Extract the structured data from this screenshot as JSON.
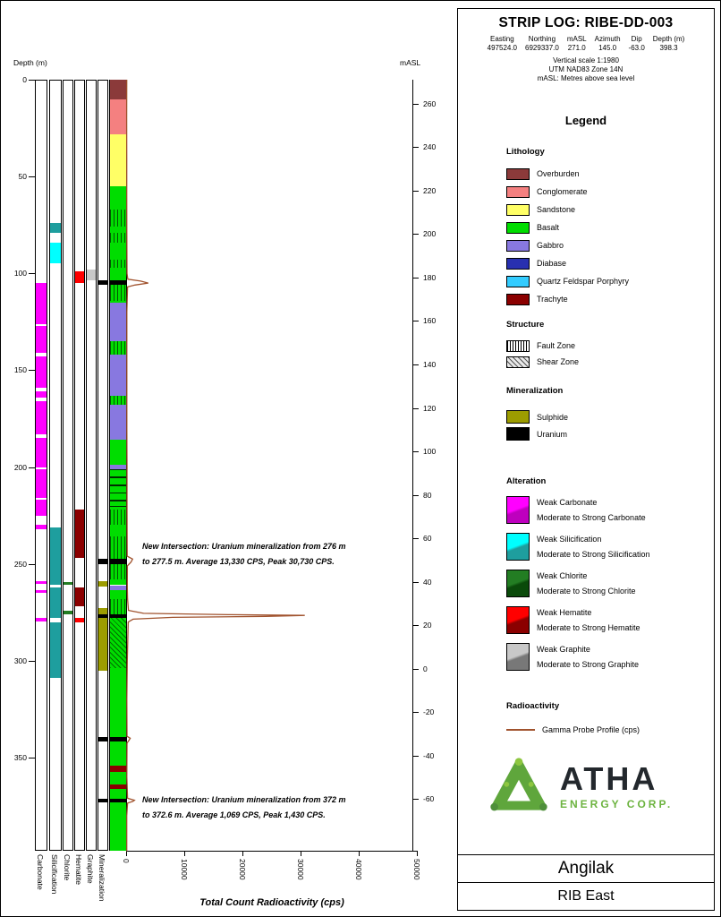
{
  "header": {
    "title": "STRIP LOG: RIBE-DD-003",
    "info": [
      {
        "label": "Easting",
        "value": "497524.0"
      },
      {
        "label": "Northing",
        "value": "6929337.0"
      },
      {
        "label": "mASL",
        "value": "271.0"
      },
      {
        "label": "Azimuth",
        "value": "145.0"
      },
      {
        "label": "Dip",
        "value": "-63.0"
      },
      {
        "label": "Depth (m)",
        "value": "398.3"
      }
    ],
    "notes": [
      "Vertical scale 1:1980",
      "UTM NAD83 Zone 14N",
      "mASL: Metres above sea level"
    ]
  },
  "legend": {
    "title": "Legend",
    "lithology": {
      "title": "Lithology",
      "items": [
        {
          "label": "Overburden",
          "color": "#8B3A3A"
        },
        {
          "label": "Conglomerate",
          "color": "#F48080"
        },
        {
          "label": "Sandstone",
          "color": "#FFFF66"
        },
        {
          "label": "Basalt",
          "color": "#00DD00"
        },
        {
          "label": "Gabbro",
          "color": "#8878E0"
        },
        {
          "label": "Diabase",
          "color": "#2830B0"
        },
        {
          "label": "Quartz Feldspar Porphyry",
          "color": "#33CCFF"
        },
        {
          "label": "Trachyte",
          "color": "#8B0000"
        }
      ]
    },
    "structure": {
      "title": "Structure",
      "items": [
        {
          "label": "Fault Zone",
          "pattern": "vertical-lines"
        },
        {
          "label": "Shear Zone",
          "pattern": "diagonal-lines"
        }
      ]
    },
    "mineralization": {
      "title": "Mineralization",
      "items": [
        {
          "label": "Sulphide",
          "color": "#9C9C00"
        },
        {
          "label": "Uranium",
          "color": "#000000"
        }
      ]
    },
    "alteration": {
      "title": "Alteration",
      "items": [
        {
          "name": "Carbonate",
          "weak_label": "Weak Carbonate",
          "strong_label": "Moderate to Strong Carbonate",
          "weak_color": "#FF00FF",
          "strong_color": "#BE00BE"
        },
        {
          "name": "Silicification",
          "weak_label": "Weak Silicification",
          "strong_label": "Moderate to Strong Silicification",
          "weak_color": "#00FFFF",
          "strong_color": "#1E9E9E"
        },
        {
          "name": "Chlorite",
          "weak_label": "Weak Chlorite",
          "strong_label": "Moderate to Strong Chlorite",
          "weak_color": "#237D23",
          "strong_color": "#0A4A0A"
        },
        {
          "name": "Hematite",
          "weak_label": "Weak Hematite",
          "strong_label": "Moderate to Strong Hematite",
          "weak_color": "#FF0000",
          "strong_color": "#8B0000"
        },
        {
          "name": "Graphite",
          "weak_label": "Weak Graphite",
          "strong_label": "Moderate to Strong Graphite",
          "weak_color": "#C8C8C8",
          "strong_color": "#787878"
        }
      ]
    },
    "radioactivity": {
      "title": "Radioactivity",
      "items": [
        {
          "label": "Gamma Probe Profile (cps)",
          "color": "#A0522D"
        }
      ]
    }
  },
  "branding": {
    "name": "ATHA",
    "subtitle": "ENERGY CORP.",
    "green": "#6CB33F",
    "dark": "#23282D"
  },
  "footer": {
    "project": "Angilak",
    "area": "RIB East"
  },
  "annotations": [
    {
      "line1": "New Intersection: Uranium mineralization from 276 m",
      "line2": "to 277.5 m. Average 13,330 CPS, Peak 30,730 CPS."
    },
    {
      "line1": "New Intersection: Uranium mineralization from 372 m",
      "line2": "to 372.6 m. Average 1,069 CPS, Peak 1,430 CPS."
    }
  ],
  "chart_data": {
    "type": "strip-log",
    "title": "STRIP LOG: RIBE-DD-003",
    "collar_masl": 271.0,
    "dip_deg": -63.0,
    "hole_depth_m": 398.3,
    "depth_axis": {
      "label": "Depth (m)",
      "ticks": [
        0,
        50,
        100,
        150,
        200,
        250,
        300,
        350
      ]
    },
    "masl_axis": {
      "label": "mASL",
      "ticks": [
        260,
        240,
        220,
        200,
        180,
        160,
        140,
        120,
        100,
        80,
        60,
        40,
        20,
        0,
        -20,
        -40,
        -60
      ]
    },
    "cps_axis": {
      "label": "Total Count Radioactivity (cps)",
      "ticks": [
        0,
        10000,
        20000,
        30000,
        40000,
        50000
      ],
      "max": 50000
    },
    "column_labels": [
      "Carbonate",
      "Silicification",
      "Chlorite",
      "Hematite",
      "Graphite",
      "Mineralization"
    ],
    "lithology_intervals": [
      {
        "from": 0,
        "to": 10,
        "unit": "Overburden"
      },
      {
        "from": 10,
        "to": 28,
        "unit": "Conglomerate"
      },
      {
        "from": 28,
        "to": 55,
        "unit": "Sandstone"
      },
      {
        "from": 55,
        "to": 115,
        "unit": "Basalt"
      },
      {
        "from": 115,
        "to": 135,
        "unit": "Gabbro"
      },
      {
        "from": 135,
        "to": 142,
        "unit": "Basalt"
      },
      {
        "from": 142,
        "to": 163,
        "unit": "Gabbro"
      },
      {
        "from": 163,
        "to": 168,
        "unit": "Basalt"
      },
      {
        "from": 168,
        "to": 186,
        "unit": "Gabbro"
      },
      {
        "from": 186,
        "to": 199,
        "unit": "Basalt"
      },
      {
        "from": 199,
        "to": 201,
        "unit": "Gabbro"
      },
      {
        "from": 201,
        "to": 261,
        "unit": "Basalt"
      },
      {
        "from": 261,
        "to": 263.5,
        "unit": "Gabbro"
      },
      {
        "from": 263.5,
        "to": 354,
        "unit": "Basalt"
      },
      {
        "from": 354,
        "to": 357.5,
        "unit": "Trachyte"
      },
      {
        "from": 357.5,
        "to": 364,
        "unit": "Basalt"
      },
      {
        "from": 364,
        "to": 366,
        "unit": "Trachyte"
      },
      {
        "from": 366,
        "to": 398.3,
        "unit": "Basalt"
      }
    ],
    "structure_intervals": [
      {
        "from": 67,
        "to": 76,
        "type": "Fault Zone"
      },
      {
        "from": 79,
        "to": 84,
        "type": "Fault Zone"
      },
      {
        "from": 93,
        "to": 97,
        "type": "Fault Zone"
      },
      {
        "from": 106,
        "to": 114,
        "type": "Fault Zone"
      },
      {
        "from": 135,
        "to": 142,
        "type": "Fault Zone"
      },
      {
        "from": 163,
        "to": 168,
        "type": "Fault Zone"
      },
      {
        "from": 222,
        "to": 230,
        "type": "Fault Zone"
      },
      {
        "from": 236,
        "to": 248,
        "type": "Fault Zone"
      },
      {
        "from": 250,
        "to": 258,
        "type": "Fault Zone"
      },
      {
        "from": 268,
        "to": 276,
        "type": "Fault Zone"
      },
      {
        "from": 276,
        "to": 304,
        "type": "Shear Zone"
      }
    ],
    "vein_marker_depths": [
      201,
      205,
      209,
      213,
      217,
      220
    ],
    "uranium_bands": [
      {
        "from": 103.5,
        "to": 106
      },
      {
        "from": 247.5,
        "to": 250
      },
      {
        "from": 275.8,
        "to": 277.8
      },
      {
        "from": 339.5,
        "to": 341.5
      },
      {
        "from": 371.3,
        "to": 373.2
      }
    ],
    "alteration_intervals": {
      "Carbonate": [
        {
          "from": 105,
          "to": 126,
          "grade": "weak"
        },
        {
          "from": 127,
          "to": 141,
          "grade": "weak"
        },
        {
          "from": 143,
          "to": 159,
          "grade": "weak"
        },
        {
          "from": 161,
          "to": 164,
          "grade": "weak"
        },
        {
          "from": 166,
          "to": 183,
          "grade": "weak"
        },
        {
          "from": 185,
          "to": 200,
          "grade": "weak"
        },
        {
          "from": 201,
          "to": 216,
          "grade": "weak"
        },
        {
          "from": 217,
          "to": 225,
          "grade": "weak"
        },
        {
          "from": 230,
          "to": 232,
          "grade": "weak"
        },
        {
          "from": 259,
          "to": 260.5,
          "grade": "weak"
        },
        {
          "from": 263.5,
          "to": 265,
          "grade": "weak"
        },
        {
          "from": 278,
          "to": 279.5,
          "grade": "weak"
        }
      ],
      "Silicification": [
        {
          "from": 74,
          "to": 79,
          "grade": "strong"
        },
        {
          "from": 84,
          "to": 95,
          "grade": "weak"
        },
        {
          "from": 231,
          "to": 261,
          "grade": "strong"
        },
        {
          "from": 262,
          "to": 278,
          "grade": "strong"
        },
        {
          "from": 280,
          "to": 309,
          "grade": "strong"
        }
      ],
      "Chlorite": [
        {
          "from": 259.5,
          "to": 261,
          "grade": "weak"
        },
        {
          "from": 274,
          "to": 276,
          "grade": "weak"
        }
      ],
      "Hematite": [
        {
          "from": 99,
          "to": 105,
          "grade": "weak"
        },
        {
          "from": 222,
          "to": 247,
          "grade": "strong"
        },
        {
          "from": 262,
          "to": 272,
          "grade": "strong"
        },
        {
          "from": 278,
          "to": 280,
          "grade": "weak"
        }
      ],
      "Graphite": [
        {
          "from": 98,
          "to": 103.5,
          "grade": "weak"
        }
      ]
    },
    "mineralization_intervals": {
      "Sulphide": [
        {
          "from": 259,
          "to": 261.5
        },
        {
          "from": 273,
          "to": 305
        }
      ],
      "Uranium": [
        {
          "from": 103.5,
          "to": 106
        },
        {
          "from": 247.5,
          "to": 250
        },
        {
          "from": 275.8,
          "to": 277.8
        },
        {
          "from": 339.5,
          "to": 341.5
        },
        {
          "from": 371.3,
          "to": 373.2
        }
      ]
    },
    "gamma_profile_cps": [
      [
        0,
        100
      ],
      [
        20,
        90
      ],
      [
        40,
        110
      ],
      [
        60,
        100
      ],
      [
        80,
        120
      ],
      [
        100,
        150
      ],
      [
        103,
        300
      ],
      [
        104,
        2500
      ],
      [
        105,
        3800
      ],
      [
        106,
        1500
      ],
      [
        107,
        250
      ],
      [
        120,
        120
      ],
      [
        150,
        120
      ],
      [
        180,
        130
      ],
      [
        200,
        160
      ],
      [
        220,
        150
      ],
      [
        246,
        180
      ],
      [
        247.5,
        1100
      ],
      [
        249,
        850
      ],
      [
        251,
        220
      ],
      [
        262,
        200
      ],
      [
        268,
        250
      ],
      [
        274,
        400
      ],
      [
        275.5,
        3000
      ],
      [
        276.2,
        18000
      ],
      [
        276.6,
        30730
      ],
      [
        277.1,
        24000
      ],
      [
        277.6,
        8000
      ],
      [
        278.5,
        1200
      ],
      [
        280,
        350
      ],
      [
        300,
        200
      ],
      [
        320,
        130
      ],
      [
        339,
        160
      ],
      [
        340,
        700
      ],
      [
        341,
        500
      ],
      [
        342.5,
        160
      ],
      [
        360,
        120
      ],
      [
        371,
        250
      ],
      [
        372,
        1430
      ],
      [
        372.6,
        1150
      ],
      [
        373.5,
        250
      ],
      [
        380,
        110
      ],
      [
        398.3,
        100
      ]
    ],
    "intersections": [
      {
        "from_m": 276,
        "to_m": 277.5,
        "avg_cps": 13330,
        "peak_cps": 30730
      },
      {
        "from_m": 372,
        "to_m": 372.6,
        "avg_cps": 1069,
        "peak_cps": 1430
      }
    ]
  }
}
